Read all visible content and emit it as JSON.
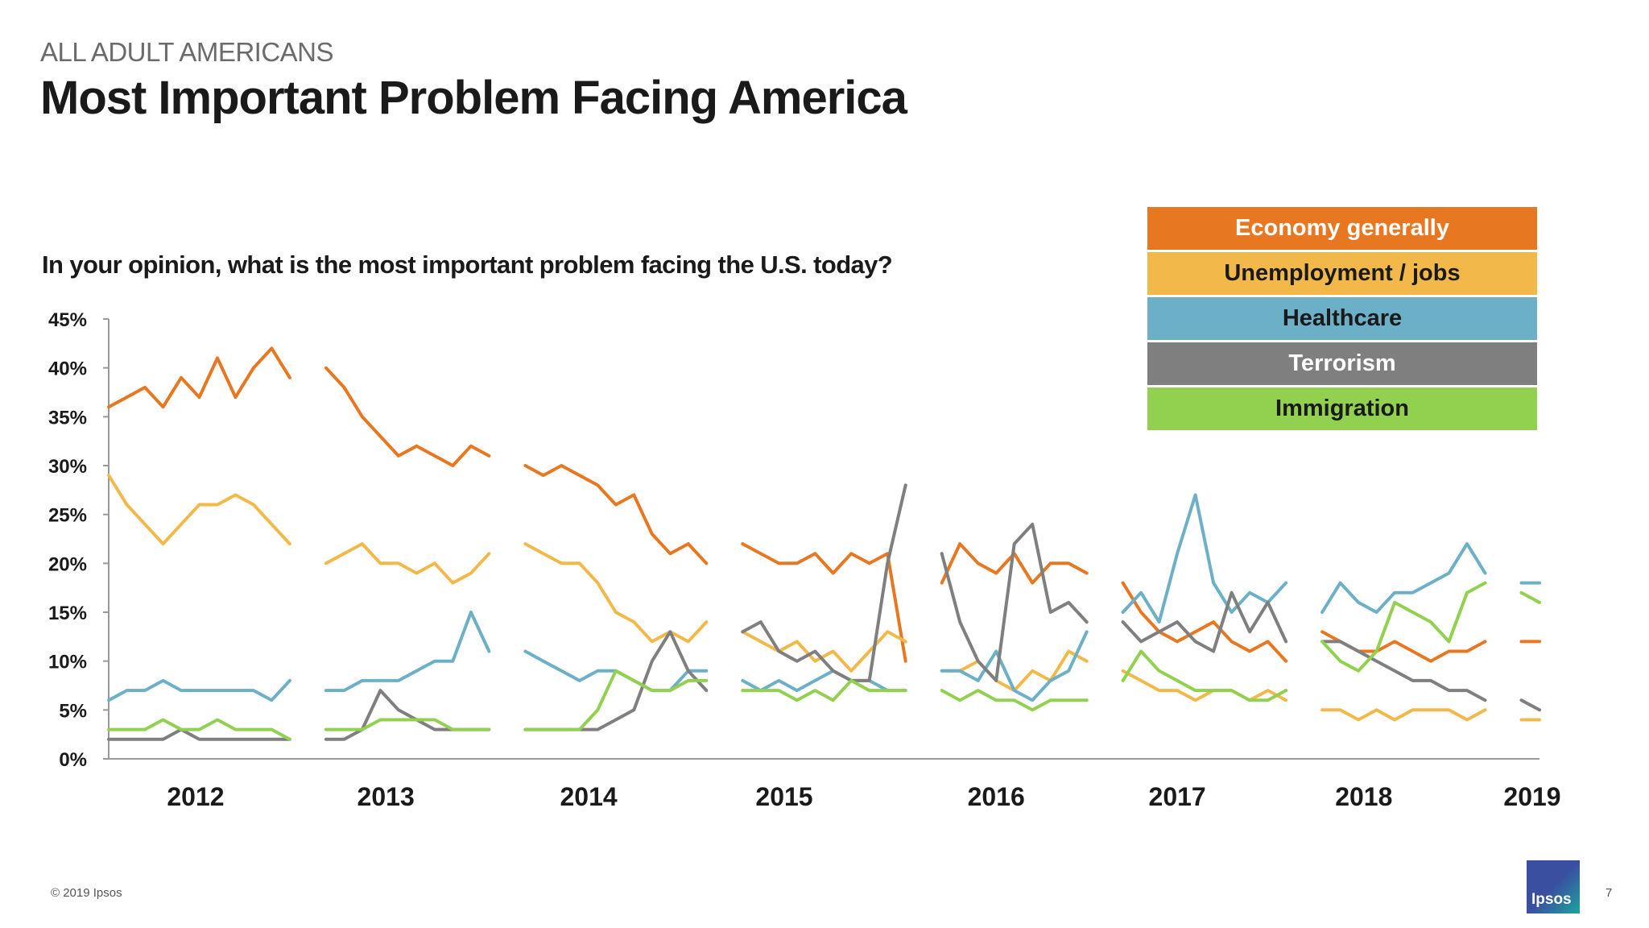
{
  "header": {
    "supertitle": "ALL ADULT AMERICANS",
    "title": "Most Important Problem Facing America",
    "question": "In your opinion, what is the most important problem facing the U.S. today?"
  },
  "footer": {
    "copyright": "© 2019 Ipsos",
    "page_number": "7",
    "logo_text": "Ipsos"
  },
  "chart_data": {
    "type": "line",
    "title": "",
    "xlabel": "",
    "ylabel": "",
    "ylim": [
      0,
      45
    ],
    "yticks": [
      0,
      5,
      10,
      15,
      20,
      25,
      30,
      35,
      40,
      45
    ],
    "ytick_labels": [
      "0%",
      "5%",
      "10%",
      "15%",
      "20%",
      "25%",
      "30%",
      "35%",
      "40%",
      "45%"
    ],
    "x": "survey wave index 0-79 (approximate sampling of weekly waves)",
    "xticks": [
      {
        "label": "2012",
        "at": 4.8
      },
      {
        "label": "2013",
        "at": 15.3
      },
      {
        "label": "2014",
        "at": 26.5
      },
      {
        "label": "2015",
        "at": 37.3
      },
      {
        "label": "2016",
        "at": 49
      },
      {
        "label": "2017",
        "at": 59
      },
      {
        "label": "2018",
        "at": 69.3
      },
      {
        "label": "2019",
        "at": 78.6
      }
    ],
    "grid": false,
    "legend": "top-right",
    "series": [
      {
        "name": "Economy generally",
        "color": "#e87722",
        "text_color": "#ffffff",
        "values": [
          36,
          37,
          38,
          36,
          39,
          37,
          41,
          37,
          40,
          42,
          39,
          null,
          40,
          38,
          35,
          33,
          31,
          32,
          31,
          30,
          32,
          31,
          null,
          30,
          29,
          30,
          29,
          28,
          26,
          27,
          23,
          21,
          22,
          20,
          null,
          22,
          21,
          20,
          20,
          21,
          19,
          21,
          20,
          21,
          10,
          null,
          18,
          22,
          20,
          19,
          21,
          18,
          20,
          20,
          19,
          null,
          18,
          15,
          13,
          12,
          13,
          14,
          12,
          11,
          12,
          10,
          null,
          13,
          12,
          11,
          11,
          12,
          11,
          10,
          11,
          11,
          12,
          null,
          12,
          12
        ]
      },
      {
        "name": "Unemployment / jobs",
        "color": "#f2b94a",
        "text_color": "#1a1a1a",
        "values": [
          29,
          26,
          24,
          22,
          24,
          26,
          26,
          27,
          26,
          24,
          22,
          null,
          20,
          21,
          22,
          20,
          20,
          19,
          20,
          18,
          19,
          21,
          null,
          22,
          21,
          20,
          20,
          18,
          15,
          14,
          12,
          13,
          12,
          14,
          null,
          13,
          12,
          11,
          12,
          10,
          11,
          9,
          11,
          13,
          12,
          null,
          9,
          9,
          10,
          8,
          7,
          9,
          8,
          11,
          10,
          null,
          9,
          8,
          7,
          7,
          6,
          7,
          7,
          6,
          7,
          6,
          null,
          5,
          5,
          4,
          5,
          4,
          5,
          5,
          5,
          4,
          5,
          null,
          4,
          4
        ]
      },
      {
        "name": "Healthcare",
        "color": "#6cb0c8",
        "text_color": "#1a1a1a",
        "values": [
          6,
          7,
          7,
          8,
          7,
          7,
          7,
          7,
          7,
          6,
          8,
          null,
          7,
          7,
          8,
          8,
          8,
          9,
          10,
          10,
          15,
          11,
          null,
          11,
          10,
          9,
          8,
          9,
          9,
          8,
          7,
          7,
          9,
          9,
          null,
          8,
          7,
          8,
          7,
          8,
          9,
          8,
          8,
          7,
          7,
          null,
          9,
          9,
          8,
          11,
          7,
          6,
          8,
          9,
          13,
          null,
          15,
          17,
          14,
          21,
          27,
          18,
          15,
          17,
          16,
          18,
          null,
          15,
          18,
          16,
          15,
          17,
          17,
          18,
          19,
          22,
          19,
          null,
          18,
          18
        ]
      },
      {
        "name": "Terrorism",
        "color": "#7f7f7f",
        "text_color": "#ffffff",
        "values": [
          2,
          2,
          2,
          2,
          3,
          2,
          2,
          2,
          2,
          2,
          2,
          null,
          2,
          2,
          3,
          7,
          5,
          4,
          3,
          3,
          3,
          3,
          null,
          3,
          3,
          3,
          3,
          3,
          4,
          5,
          10,
          13,
          9,
          7,
          null,
          13,
          14,
          11,
          10,
          11,
          9,
          8,
          8,
          20,
          28,
          null,
          21,
          14,
          10,
          8,
          22,
          24,
          15,
          16,
          14,
          null,
          14,
          12,
          13,
          14,
          12,
          11,
          17,
          13,
          16,
          12,
          null,
          12,
          12,
          11,
          10,
          9,
          8,
          8,
          7,
          7,
          6,
          null,
          6,
          5
        ]
      },
      {
        "name": "Immigration",
        "color": "#92d050",
        "text_color": "#1a1a1a",
        "values": [
          3,
          3,
          3,
          4,
          3,
          3,
          4,
          3,
          3,
          3,
          2,
          null,
          3,
          3,
          3,
          4,
          4,
          4,
          4,
          3,
          3,
          3,
          null,
          3,
          3,
          3,
          3,
          5,
          9,
          8,
          7,
          7,
          8,
          8,
          null,
          7,
          7,
          7,
          6,
          7,
          6,
          8,
          7,
          7,
          7,
          null,
          7,
          6,
          7,
          6,
          6,
          5,
          6,
          6,
          6,
          null,
          8,
          11,
          9,
          8,
          7,
          7,
          7,
          6,
          6,
          7,
          null,
          12,
          10,
          9,
          11,
          16,
          15,
          14,
          12,
          17,
          18,
          null,
          17,
          16
        ]
      }
    ]
  }
}
